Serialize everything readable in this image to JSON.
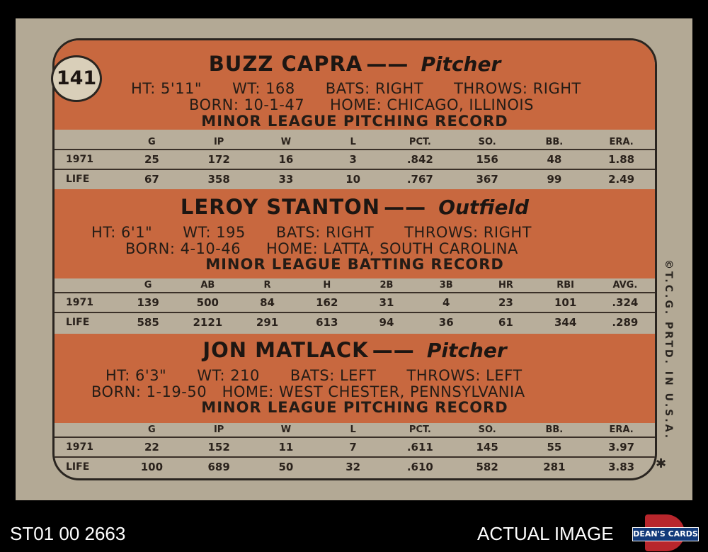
{
  "card_number": "141",
  "players": [
    {
      "name": "BUZZ CAPRA",
      "position": "Pitcher",
      "line1": "HT: 5'11\"      WT: 168      BATS: RIGHT      THROWS: RIGHT",
      "line2": "BORN: 10-1-47     HOME: CHICAGO, ILLINOIS",
      "record_title": "MINOR LEAGUE PITCHING RECORD",
      "columns": [
        "G",
        "IP",
        "W",
        "L",
        "PCT.",
        "SO.",
        "BB.",
        "ERA."
      ],
      "rows": [
        {
          "label": "1971",
          "values": [
            "25",
            "172",
            "16",
            "3",
            ".842",
            "156",
            "48",
            "1.88"
          ]
        },
        {
          "label": "LIFE",
          "values": [
            "67",
            "358",
            "33",
            "10",
            ".767",
            "367",
            "99",
            "2.49"
          ]
        }
      ]
    },
    {
      "name": "LEROY STANTON",
      "position": "Outfield",
      "line1": "HT: 6'1\"      WT: 195      BATS: RIGHT      THROWS: RIGHT",
      "line2": "BORN: 4-10-46     HOME: LATTA, SOUTH CAROLINA",
      "record_title": "MINOR LEAGUE BATTING RECORD",
      "columns": [
        "G",
        "AB",
        "R",
        "H",
        "2B",
        "3B",
        "HR",
        "RBI",
        "AVG."
      ],
      "rows": [
        {
          "label": "1971",
          "values": [
            "139",
            "500",
            "84",
            "162",
            "31",
            "4",
            "23",
            "101",
            ".324"
          ]
        },
        {
          "label": "LIFE",
          "values": [
            "585",
            "2121",
            "291",
            "613",
            "94",
            "36",
            "61",
            "344",
            ".289"
          ]
        }
      ]
    },
    {
      "name": "JON MATLACK",
      "position": "Pitcher",
      "line1": "HT: 6'3\"      WT: 210      BATS: LEFT      THROWS: LEFT",
      "line2": "BORN: 1-19-50   HOME: WEST CHESTER, PENNSYLVANIA",
      "record_title": "MINOR LEAGUE PITCHING RECORD",
      "columns": [
        "G",
        "IP",
        "W",
        "L",
        "PCT.",
        "SO.",
        "BB.",
        "ERA."
      ],
      "rows": [
        {
          "label": "1971",
          "values": [
            "22",
            "152",
            "11",
            "7",
            ".611",
            "145",
            "55",
            "3.97"
          ]
        },
        {
          "label": "LIFE",
          "values": [
            "100",
            "689",
            "50",
            "32",
            ".610",
            "582",
            "281",
            "3.83"
          ]
        }
      ]
    }
  ],
  "copyright": "©T.C.G. PRTD. IN U.S.A.",
  "star": "✱",
  "footer": {
    "left": "ST01 00 2663",
    "right": "ACTUAL IMAGE",
    "logo_text": "DEAN'S CARDS"
  },
  "colors": {
    "band": "#c8683f",
    "card": "#b3a995",
    "background": "#000000"
  }
}
